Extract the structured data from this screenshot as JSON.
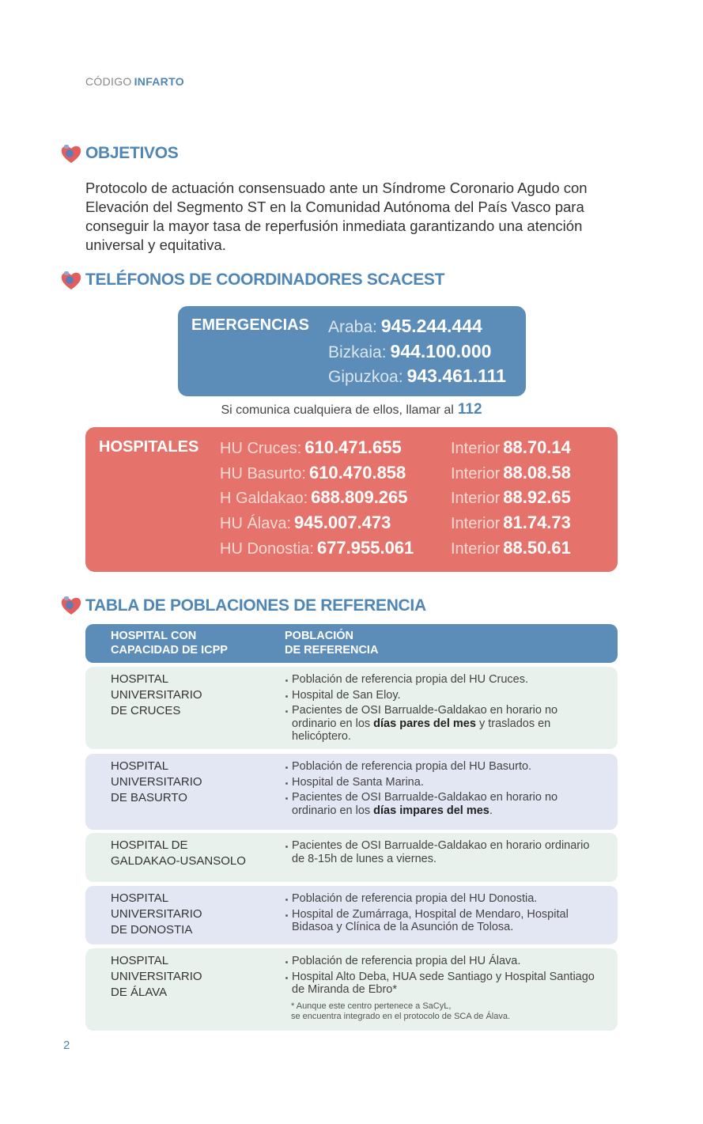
{
  "header": {
    "prefix": "CÓDIGO",
    "highlight": "INFARTO"
  },
  "objectives": {
    "title": "OBJETIVOS",
    "text": "Protocolo de actuación consensuado ante un Síndrome Coronario Agudo con Elevación del Segmento ST en la Comunidad Autónoma del País Vasco para conseguir la mayor tasa de reperfusión inmediata garantizando una atención universal y equitativa."
  },
  "phones": {
    "title": "TELÉFONOS DE COORDINADORES SCACEST",
    "emergencies": {
      "label": "EMERGENCIAS",
      "entries": [
        {
          "place": "Araba:",
          "number": "945.244.444"
        },
        {
          "place": "Bizkaia:",
          "number": "944.100.000"
        },
        {
          "place": "Gipuzkoa:",
          "number": "943.461.111"
        }
      ]
    },
    "note": {
      "text": "Si comunica cualquiera de ellos, llamar al",
      "number": "112"
    },
    "hospitals": {
      "label": "HOSPITALES",
      "entries": [
        {
          "name": "HU Cruces:",
          "number": "610.471.655",
          "interior_label": "Interior",
          "interior": "88.70.14"
        },
        {
          "name": "HU Basurto:",
          "number": "610.470.858",
          "interior_label": "Interior",
          "interior": "88.08.58"
        },
        {
          "name": "H Galdakao:",
          "number": "688.809.265",
          "interior_label": "Interior",
          "interior": "88.92.65"
        },
        {
          "name": "HU Álava:",
          "number": "945.007.473",
          "interior_label": "Interior",
          "interior": "81.74.73"
        },
        {
          "name": "HU Donostia:",
          "number": "677.955.061",
          "interior_label": "Interior",
          "interior": "88.50.61"
        }
      ]
    }
  },
  "table": {
    "title": "TABLA DE POBLACIONES DE REFERENCIA",
    "headers": [
      [
        "HOSPITAL CON",
        "CAPACIDAD DE ICPP"
      ],
      [
        "POBLACIÓN",
        "DE REFERENCIA"
      ]
    ],
    "rows": [
      {
        "hospital": [
          "HOSPITAL",
          "UNIVERSITARIO",
          "DE CRUCES"
        ],
        "items": [
          [
            {
              "text": "Población de referencia propia del HU Cruces."
            }
          ],
          [
            {
              "text": "Hospital de San Eloy."
            }
          ],
          [
            {
              "text": "Pacientes de OSI Barrualde-Galdakao en horario no ordinario en los "
            },
            {
              "text": "días pares del mes",
              "bold": true
            },
            {
              "text": " y traslados en helicóptero."
            }
          ]
        ]
      },
      {
        "hospital": [
          "HOSPITAL",
          "UNIVERSITARIO",
          "DE BASURTO"
        ],
        "items": [
          [
            {
              "text": "Población de referencia propia del HU Basurto."
            }
          ],
          [
            {
              "text": "Hospital de Santa Marina."
            }
          ],
          [
            {
              "text": "Pacientes de OSI Barrualde-Galdakao en horario no ordinario en los "
            },
            {
              "text": "días impares del mes",
              "bold": true
            },
            {
              "text": "."
            }
          ]
        ]
      },
      {
        "hospital": [
          "HOSPITAL DE",
          "GALDAKAO-USANSOLO"
        ],
        "items": [
          [
            {
              "text": "Pacientes de OSI Barrualde-Galdakao en horario ordinario de 8-15h de lunes a viernes."
            }
          ]
        ]
      },
      {
        "hospital": [
          "HOSPITAL",
          "UNIVERSITARIO",
          "DE DONOSTIA"
        ],
        "items": [
          [
            {
              "text": "Población de referencia propia del HU Donostia."
            }
          ],
          [
            {
              "text": "Hospital de Zumárraga, Hospital de Mendaro, Hospital Bidasoa y Clínica de la Asunción de Tolosa."
            }
          ]
        ]
      },
      {
        "hospital": [
          "HOSPITAL",
          "UNIVERSITARIO",
          "DE ÁLAVA"
        ],
        "items": [
          [
            {
              "text": "Población de referencia propia del HU Álava."
            }
          ],
          [
            {
              "text": "Hospital Alto Deba, HUA sede Santiago y Hospital Santiago de Miranda de Ebro*"
            }
          ]
        ],
        "footnote": [
          "* Aunque este centro pertenece a SaCyL,",
          "se encuentra integrado en el protocolo de SCA de Álava."
        ]
      }
    ]
  },
  "page_number": "2"
}
